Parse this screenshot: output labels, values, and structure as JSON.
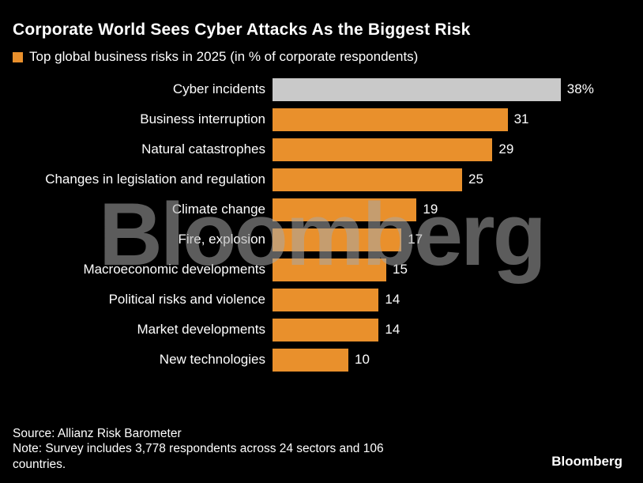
{
  "title": "Corporate World Sees Cyber Attacks As the Biggest Risk",
  "legend": {
    "label": "Top global business risks in 2025 (in % of corporate respondents)"
  },
  "colors": {
    "background": "#000000",
    "bar_default": "#e9902c",
    "bar_highlight": "#c9c9c9",
    "text": "#ffffff",
    "watermark_gray": "#a8a8a8"
  },
  "chart_data": {
    "type": "bar",
    "orientation": "horizontal",
    "title": "Top global business risks in 2025 (in % of corporate respondents)",
    "categories": [
      "Cyber incidents",
      "Business interruption",
      "Natural catastrophes",
      "Changes in legislation and regulation",
      "Climate change",
      "Fire, explosion",
      "Macroeconomic developments",
      "Political risks and violence",
      "Market developments",
      "New technologies"
    ],
    "values": [
      38,
      31,
      29,
      25,
      19,
      17,
      15,
      14,
      14,
      10
    ],
    "value_labels": [
      "38%",
      "31",
      "29",
      "25",
      "19",
      "17",
      "15",
      "14",
      "14",
      "10"
    ],
    "highlight_index": 0,
    "xlim": [
      0,
      40
    ],
    "xlabel": "",
    "ylabel": "",
    "grid": false,
    "legend_position": "top-left"
  },
  "footer": {
    "source": "Source: Allianz Risk Barometer",
    "note": "Note: Survey includes 3,778 respondents across 24 sectors and 106 countries."
  },
  "watermark": "Bloomberg",
  "logo": "Bloomberg"
}
